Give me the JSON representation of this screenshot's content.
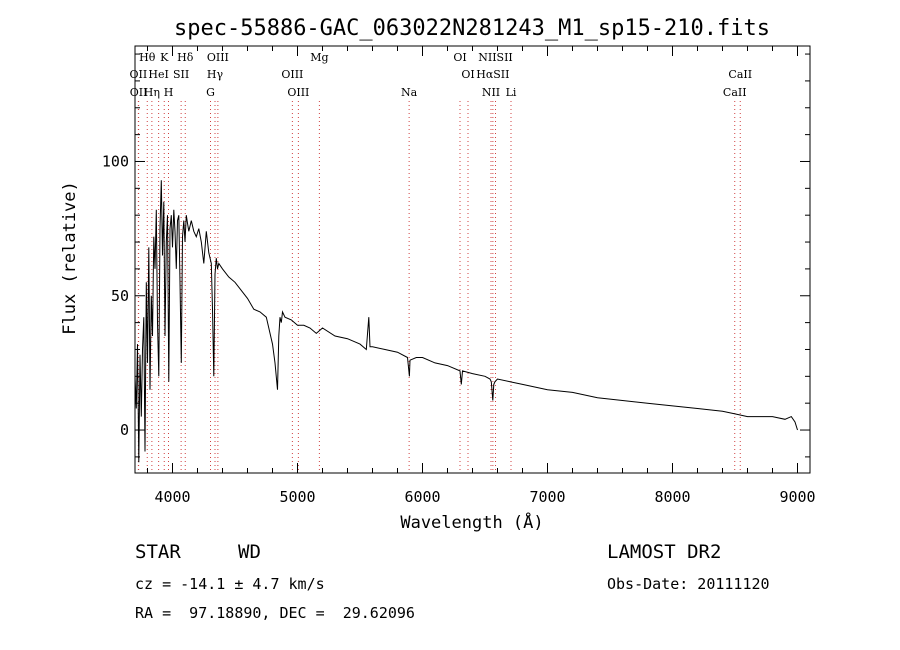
{
  "chart_data": {
    "type": "line",
    "title": "spec-55886-GAC_063022N281243_M1_sp15-210.fits",
    "xlabel": "Wavelength (Å)",
    "ylabel": "Flux (relative)",
    "xlim": [
      3700,
      9100
    ],
    "ylim": [
      -16,
      143
    ],
    "xticks": [
      4000,
      5000,
      6000,
      7000,
      8000,
      9000
    ],
    "yticks": [
      0,
      50,
      100
    ],
    "grid": false,
    "series": [
      {
        "x": [
          3700,
          3710,
          3720,
          3730,
          3740,
          3750,
          3760,
          3770,
          3780,
          3790,
          3800,
          3810,
          3820,
          3830,
          3840,
          3850,
          3860,
          3870,
          3880,
          3890,
          3900,
          3910,
          3920,
          3930,
          3940,
          3950,
          3960,
          3970,
          3980,
          3990,
          4000,
          4010,
          4020,
          4030,
          4040,
          4050,
          4060,
          4070,
          4080,
          4090,
          4100,
          4110,
          4120,
          4130,
          4150,
          4170,
          4190,
          4210,
          4230,
          4250,
          4270,
          4290,
          4310,
          4320,
          4330,
          4340,
          4350,
          4360,
          4370,
          4400,
          4450,
          4500,
          4550,
          4600,
          4650,
          4700,
          4750,
          4800,
          4820,
          4840,
          4850,
          4860,
          4870,
          4880,
          4900,
          4950,
          5000,
          5050,
          5100,
          5150,
          5200,
          5300,
          5400,
          5500,
          5550,
          5570,
          5580,
          5600,
          5700,
          5800,
          5880,
          5895,
          5900,
          5950,
          6000,
          6100,
          6200,
          6300,
          6310,
          6320,
          6400,
          6500,
          6540,
          6550,
          6562,
          6570,
          6580,
          6600,
          6700,
          6800,
          7000,
          7200,
          7400,
          7600,
          7800,
          8000,
          8200,
          8400,
          8500,
          8600,
          8700,
          8800,
          8900,
          8950,
          8980,
          9000
        ],
        "values": [
          20,
          8,
          32,
          -12,
          28,
          5,
          30,
          42,
          -8,
          55,
          25,
          68,
          15,
          50,
          35,
          72,
          60,
          82,
          40,
          20,
          75,
          93,
          65,
          85,
          35,
          70,
          80,
          18,
          75,
          80,
          68,
          82,
          74,
          60,
          78,
          80,
          55,
          25,
          72,
          78,
          70,
          80,
          77,
          74,
          78,
          74,
          72,
          75,
          70,
          62,
          74,
          66,
          62,
          45,
          20,
          58,
          64,
          60,
          62,
          60,
          57,
          55,
          52,
          49,
          45,
          44,
          42,
          32,
          25,
          15,
          35,
          42,
          40,
          44,
          42,
          41,
          39,
          39,
          38,
          36,
          38,
          35,
          34,
          32,
          30,
          42,
          31,
          31,
          30,
          29,
          27,
          20,
          26,
          27,
          27,
          25,
          24,
          22,
          17,
          22,
          21,
          20,
          19,
          18,
          11,
          17,
          18,
          19,
          18,
          17,
          15,
          14,
          12,
          11,
          10,
          9,
          8,
          7,
          6,
          5,
          5,
          5,
          4,
          5,
          3,
          0
        ]
      }
    ],
    "spectral_lines": [
      {
        "label": "Hθ",
        "x": 3798,
        "row": 1
      },
      {
        "label": "K",
        "x": 3934,
        "row": 1
      },
      {
        "label": "Hδ",
        "x": 4102,
        "row": 1
      },
      {
        "label": "OIII",
        "x": 4363,
        "row": 1
      },
      {
        "label": "Mg",
        "x": 5175,
        "row": 1
      },
      {
        "label": "OI",
        "x": 6300,
        "row": 1
      },
      {
        "label": "NIISII",
        "x": 6584,
        "row": 1
      },
      {
        "label": "OII",
        "x": 3727,
        "row": 2
      },
      {
        "label": "HeI",
        "x": 3889,
        "row": 2
      },
      {
        "label": "SII",
        "x": 4069,
        "row": 2
      },
      {
        "label": "Hγ",
        "x": 4340,
        "row": 2
      },
      {
        "label": "OIII",
        "x": 4959,
        "row": 2
      },
      {
        "label": "OI",
        "x": 6364,
        "row": 2
      },
      {
        "label": "HαSII",
        "x": 6563,
        "row": 2
      },
      {
        "label": "CaII",
        "x": 8542,
        "row": 2
      },
      {
        "label": "OII",
        "x": 3729,
        "row": 3
      },
      {
        "label": "Hη",
        "x": 3835,
        "row": 3
      },
      {
        "label": "H",
        "x": 3968,
        "row": 3
      },
      {
        "label": "G",
        "x": 4304,
        "row": 3
      },
      {
        "label": "OIII",
        "x": 5007,
        "row": 3
      },
      {
        "label": "Na",
        "x": 5893,
        "row": 3
      },
      {
        "label": "NII",
        "x": 6548,
        "row": 3
      },
      {
        "label": "Li",
        "x": 6708,
        "row": 3
      },
      {
        "label": "CaII",
        "x": 8498,
        "row": 3
      }
    ]
  },
  "footer": {
    "object_class": "STAR",
    "subclass": "WD",
    "survey": "LAMOST DR2",
    "redshift": "cz = -14.1 ± 4.7 km/s",
    "obs_date": "Obs-Date: 20111120",
    "coords": "RA =  97.18890, DEC =  29.62096"
  }
}
